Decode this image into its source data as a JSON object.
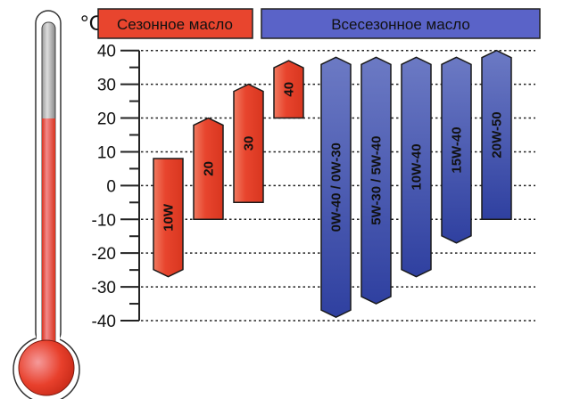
{
  "chart_data": {
    "type": "bar",
    "unit_label": "°C",
    "ylim": [
      -40,
      40
    ],
    "yticks": [
      40,
      30,
      20,
      10,
      0,
      -10,
      -20,
      -30,
      -40
    ],
    "ytick_labels": [
      "40",
      "30",
      "20",
      "10",
      "0",
      "-10",
      "-20",
      "-30",
      "-40"
    ],
    "grid": true,
    "legend": [
      {
        "label": "Сезонное масло",
        "color": "#e8452e"
      },
      {
        "label": "Всесезонное масло",
        "color": "#5a63c8"
      }
    ],
    "series": [
      {
        "group": "seasonal",
        "color": "#e8452e",
        "bars": [
          {
            "label": "10W",
            "low": -27,
            "high": 8,
            "top_arrow": false,
            "bottom_arrow": true
          },
          {
            "label": "20",
            "low": -10,
            "high": 20,
            "top_arrow": true,
            "bottom_arrow": false
          },
          {
            "label": "30",
            "low": -5,
            "high": 30,
            "top_arrow": true,
            "bottom_arrow": false
          },
          {
            "label": "40",
            "low": 20,
            "high": 37,
            "top_arrow": true,
            "bottom_arrow": false
          }
        ]
      },
      {
        "group": "all-season",
        "color": "#3a4ca6",
        "bars": [
          {
            "label": "0W-40 / 0W-30",
            "low": -39,
            "high": 38,
            "top_arrow": true,
            "bottom_arrow": true
          },
          {
            "label": "5W-30 / 5W-40",
            "low": -35,
            "high": 38,
            "top_arrow": true,
            "bottom_arrow": true
          },
          {
            "label": "10W-40",
            "low": -27,
            "high": 38,
            "top_arrow": true,
            "bottom_arrow": true
          },
          {
            "label": "15W-40",
            "low": -17,
            "high": 38,
            "top_arrow": true,
            "bottom_arrow": true
          },
          {
            "label": "20W-50",
            "low": -10,
            "high": 40,
            "top_arrow": true,
            "bottom_arrow": false
          }
        ]
      }
    ],
    "thermometer_level": 20
  }
}
